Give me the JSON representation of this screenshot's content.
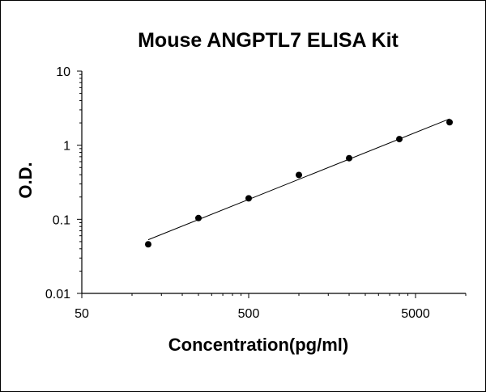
{
  "chart_data": {
    "type": "scatter",
    "title": "Mouse ANGPTL7 ELISA Kit",
    "xlabel": "Concentration(pg/ml)",
    "ylabel": "O.D.",
    "x_scale": "log",
    "y_scale": "log",
    "xlim": [
      50,
      10000
    ],
    "ylim": [
      0.01,
      10
    ],
    "x_tick_labels": [
      {
        "value": 50,
        "label": "50"
      },
      {
        "value": 500,
        "label": "500"
      },
      {
        "value": 5000,
        "label": "5000"
      }
    ],
    "y_tick_labels": [
      {
        "value": 10,
        "label": "10"
      },
      {
        "value": 1,
        "label": "1"
      },
      {
        "value": 0.1,
        "label": "0.1"
      },
      {
        "value": 0.01,
        "label": "0.01"
      }
    ],
    "grid": false,
    "legend": "none",
    "trendline": "power fit",
    "series": [
      {
        "x": [
          125,
          250,
          500,
          1000,
          2000,
          4000,
          8000
        ],
        "y": [
          0.046,
          0.104,
          0.192,
          0.397,
          0.668,
          1.21,
          2.04
        ]
      }
    ],
    "colors": {
      "points": "#000000",
      "line": "#000000",
      "axes": "#000000"
    }
  }
}
